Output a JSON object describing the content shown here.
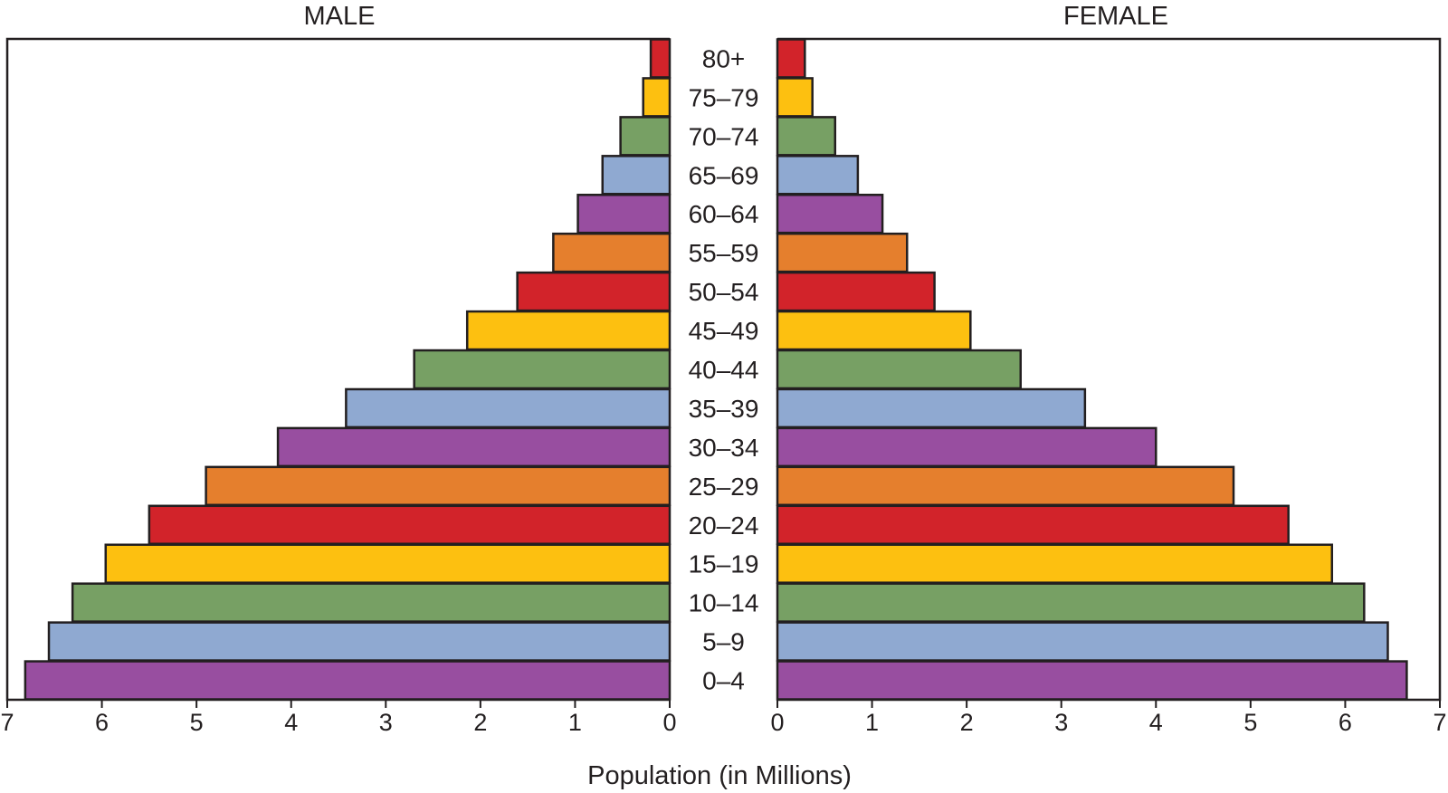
{
  "chart_data": {
    "type": "bar",
    "xlabel": "Population (in Millions)",
    "xlim": [
      0,
      7
    ],
    "ticks": [
      0,
      1,
      2,
      3,
      4,
      5,
      6,
      7
    ],
    "categories": [
      "80+",
      "75–79",
      "70–74",
      "65–69",
      "60–64",
      "55–59",
      "50–54",
      "45–49",
      "40–44",
      "35–39",
      "30–34",
      "25–29",
      "20–24",
      "15–19",
      "10–14",
      "5–9",
      "0–4"
    ],
    "series": [
      {
        "name": "MALE",
        "values": [
          0.2,
          0.28,
          0.52,
          0.71,
          0.97,
          1.23,
          1.61,
          2.14,
          2.7,
          3.42,
          4.14,
          4.9,
          5.5,
          5.96,
          6.31,
          6.56,
          6.81
        ]
      },
      {
        "name": "FEMALE",
        "values": [
          0.29,
          0.37,
          0.61,
          0.85,
          1.11,
          1.37,
          1.66,
          2.04,
          2.57,
          3.25,
          4.0,
          4.82,
          5.4,
          5.86,
          6.2,
          6.45,
          6.65
        ]
      }
    ],
    "bar_colors": [
      "#d2232a",
      "#fdc010",
      "#77a064",
      "#8fa9d1",
      "#984ea0",
      "#e57f2d"
    ],
    "grid": false
  }
}
